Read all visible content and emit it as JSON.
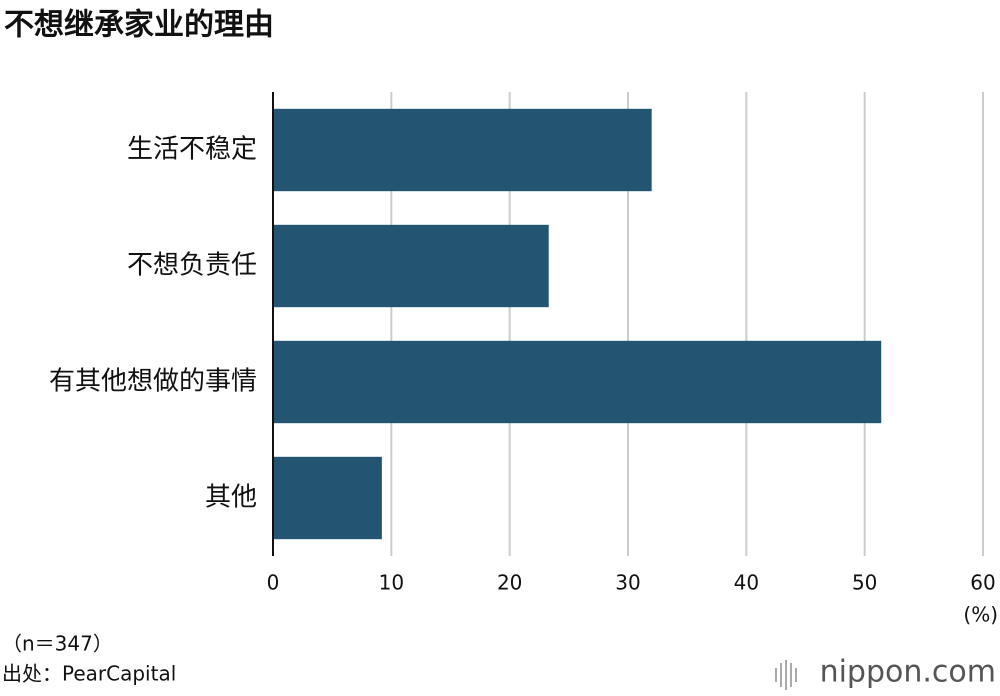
{
  "chart_data": {
    "type": "bar",
    "orientation": "horizontal",
    "title": "不想继承家业的理由",
    "categories": [
      "生活不稳定",
      "不想负责任",
      "有其他想做的事情",
      "其他"
    ],
    "values": [
      32.0,
      23.3,
      51.4,
      9.2
    ],
    "color": "#235573",
    "xlim": [
      0,
      60
    ],
    "xticks": [
      0,
      10,
      20,
      30,
      40,
      50,
      60
    ],
    "grid": true,
    "unit": "(%)",
    "note": "（n＝347）",
    "source": "出处：PearCapital",
    "logo": "nippon.com"
  }
}
